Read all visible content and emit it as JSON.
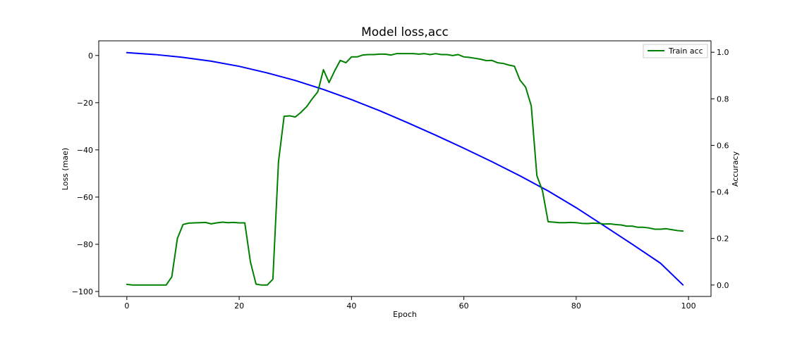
{
  "chart_data": {
    "type": "line",
    "title": "Model loss,acc",
    "xlabel": "Epoch",
    "ylabel": "Loss (mae)",
    "y2label": "Accuracy",
    "xlim": [
      -5,
      104
    ],
    "ylim": [
      -102.1,
      6.2
    ],
    "y2lim": [
      -0.049,
      1.049
    ],
    "x_ticks": [
      0,
      20,
      40,
      60,
      80,
      100
    ],
    "y_ticks": [
      0,
      -20,
      -40,
      -60,
      -80,
      -100
    ],
    "y2_ticks": [
      0.0,
      0.2,
      0.4,
      0.6,
      0.8,
      1.0
    ],
    "x_tick_labels": [
      "0",
      "20",
      "40",
      "60",
      "80",
      "100"
    ],
    "y_tick_labels": [
      "0",
      "−20",
      "−40",
      "−60",
      "−80",
      "−100"
    ],
    "y2_tick_labels": [
      "0.0",
      "0.2",
      "0.4",
      "0.6",
      "0.8",
      "1.0"
    ],
    "grid": false,
    "legend_position": "top-right",
    "colors": {
      "loss": "#0000ff",
      "accuracy": "#008000"
    },
    "series": [
      {
        "name": "",
        "axis": "left",
        "color": "#0000ff",
        "x": [
          0,
          5,
          10,
          15,
          20,
          25,
          30,
          35,
          40,
          45,
          50,
          55,
          60,
          65,
          70,
          75,
          80,
          85,
          90,
          95,
          99
        ],
        "y": [
          1.2,
          0.4,
          -0.8,
          -2.4,
          -4.6,
          -7.4,
          -10.6,
          -14.4,
          -18.7,
          -23.4,
          -28.5,
          -33.8,
          -39.3,
          -45.0,
          -51.0,
          -57.4,
          -64.5,
          -72.2,
          -80.0,
          -88.0,
          -97.2
        ]
      },
      {
        "name": "Train acc",
        "axis": "right",
        "color": "#008000",
        "x": [
          0,
          1,
          2,
          3,
          4,
          5,
          6,
          7,
          8,
          9,
          10,
          11,
          12,
          13,
          14,
          15,
          16,
          17,
          18,
          19,
          20,
          21,
          22,
          23,
          24,
          25,
          26,
          27,
          28,
          29,
          30,
          31,
          32,
          33,
          34,
          35,
          36,
          37,
          38,
          39,
          40,
          41,
          42,
          43,
          44,
          45,
          46,
          47,
          48,
          49,
          50,
          51,
          52,
          53,
          54,
          55,
          56,
          57,
          58,
          59,
          60,
          61,
          62,
          63,
          64,
          65,
          66,
          67,
          68,
          69,
          70,
          71,
          72,
          73,
          74,
          75,
          76,
          77,
          78,
          79,
          80,
          81,
          82,
          83,
          84,
          85,
          86,
          87,
          88,
          89,
          90,
          91,
          92,
          93,
          94,
          95,
          96,
          97,
          98,
          99
        ],
        "y": [
          0.003,
          0.0,
          0.0,
          0.0,
          0.0,
          0.0,
          0.0,
          0.0,
          0.035,
          0.2,
          0.26,
          0.266,
          0.267,
          0.268,
          0.269,
          0.263,
          0.267,
          0.27,
          0.268,
          0.269,
          0.267,
          0.267,
          0.1,
          0.004,
          0.0,
          0.0,
          0.025,
          0.53,
          0.725,
          0.727,
          0.722,
          0.742,
          0.766,
          0.8,
          0.83,
          0.925,
          0.87,
          0.92,
          0.965,
          0.955,
          0.98,
          0.98,
          0.988,
          0.99,
          0.99,
          0.992,
          0.992,
          0.988,
          0.994,
          0.994,
          0.994,
          0.994,
          0.992,
          0.994,
          0.99,
          0.994,
          0.99,
          0.99,
          0.986,
          0.99,
          0.98,
          0.978,
          0.974,
          0.97,
          0.964,
          0.965,
          0.955,
          0.952,
          0.945,
          0.94,
          0.88,
          0.85,
          0.77,
          0.47,
          0.405,
          0.272,
          0.27,
          0.268,
          0.268,
          0.269,
          0.268,
          0.265,
          0.264,
          0.266,
          0.265,
          0.262,
          0.263,
          0.26,
          0.258,
          0.253,
          0.253,
          0.248,
          0.248,
          0.245,
          0.24,
          0.24,
          0.242,
          0.238,
          0.234,
          0.232
        ]
      }
    ]
  }
}
